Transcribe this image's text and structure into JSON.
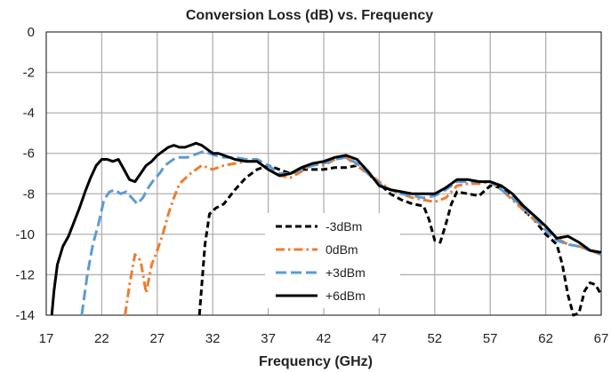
{
  "chart_data": {
    "type": "line",
    "title": "Conversion Loss (dB) vs. Frequency",
    "xlabel": "Frequency (GHz)",
    "ylabel": "",
    "xlim": [
      17,
      67
    ],
    "ylim": [
      -14,
      0
    ],
    "x_ticks": [
      17,
      22,
      27,
      32,
      37,
      42,
      47,
      52,
      57,
      62,
      67
    ],
    "y_ticks": [
      0,
      -2,
      -4,
      -6,
      -8,
      -10,
      -12,
      -14
    ],
    "grid": true,
    "legend_position": "center-bottom",
    "series": [
      {
        "name": "-3dBm",
        "color": "#000000",
        "dash": "dash",
        "x": [
          30.8,
          31.3,
          31.7,
          32.3,
          33.0,
          34.0,
          35.0,
          36.0,
          37.0,
          38.0,
          39.0,
          40.0,
          41.0,
          42.0,
          43.0,
          44.0,
          45.0,
          46.0,
          47.0,
          48.0,
          49.0,
          50.0,
          51.0,
          51.5,
          52.0,
          52.5,
          53.0,
          53.5,
          54.0,
          55.0,
          56.0,
          57.0,
          58.0,
          59.0,
          60.0,
          61.0,
          62.0,
          63.0,
          63.5,
          64.0,
          64.5,
          65.0,
          65.5,
          66.0,
          66.5,
          67.0
        ],
        "y": [
          -14.0,
          -10.5,
          -9.0,
          -8.7,
          -8.5,
          -7.8,
          -7.2,
          -6.8,
          -6.6,
          -6.8,
          -7.0,
          -6.8,
          -6.8,
          -6.8,
          -6.7,
          -6.7,
          -6.6,
          -7.0,
          -7.5,
          -8.0,
          -8.3,
          -8.5,
          -8.6,
          -9.3,
          -10.3,
          -10.4,
          -9.5,
          -8.5,
          -7.9,
          -8.0,
          -8.1,
          -7.6,
          -7.7,
          -8.2,
          -8.8,
          -9.3,
          -10.0,
          -10.5,
          -11.5,
          -13.0,
          -14.0,
          -13.9,
          -12.8,
          -12.4,
          -12.5,
          -13.0
        ]
      },
      {
        "name": "0dBm",
        "color": "#ED7D31",
        "dash": "dashdot",
        "x": [
          24.1,
          24.5,
          25.0,
          25.5,
          26.0,
          26.5,
          27.0,
          27.5,
          28.0,
          28.5,
          29.0,
          30.0,
          31.0,
          32.0,
          33.0,
          34.0,
          35.0,
          36.0,
          37.0,
          38.0,
          39.0,
          40.0,
          41.0,
          42.0,
          43.0,
          44.0,
          45.0,
          46.0,
          47.0,
          48.0,
          49.0,
          50.0,
          51.0,
          52.0,
          53.0,
          54.0,
          55.0,
          56.0,
          57.0,
          58.0,
          59.0,
          60.0,
          61.0,
          62.0,
          63.0,
          64.0,
          65.0,
          66.0,
          67.0
        ],
        "y": [
          -14.0,
          -12.5,
          -11.0,
          -11.3,
          -12.9,
          -11.5,
          -10.8,
          -10.0,
          -9.0,
          -8.2,
          -7.5,
          -7.0,
          -6.6,
          -6.8,
          -6.6,
          -6.5,
          -6.4,
          -6.4,
          -6.8,
          -7.1,
          -7.2,
          -6.9,
          -6.5,
          -6.6,
          -6.3,
          -6.2,
          -6.6,
          -7.0,
          -7.4,
          -7.8,
          -8.0,
          -8.2,
          -8.3,
          -8.4,
          -8.2,
          -7.6,
          -7.5,
          -7.5,
          -7.4,
          -7.8,
          -8.3,
          -8.8,
          -9.3,
          -9.7,
          -10.2,
          -10.5,
          -10.6,
          -10.8,
          -11.0
        ]
      },
      {
        "name": "+3dBm",
        "color": "#5B9BD5",
        "dash": "longdash",
        "x": [
          20.2,
          20.7,
          21.2,
          21.7,
          22.2,
          22.7,
          23.2,
          23.7,
          24.2,
          24.7,
          25.2,
          25.7,
          26.2,
          26.7,
          27.2,
          27.7,
          28.2,
          28.7,
          29.2,
          29.7,
          30.2,
          30.7,
          31.2,
          31.7,
          32.2,
          33.0,
          34.0,
          35.0,
          36.0,
          37.0,
          38.0,
          39.0,
          40.0,
          41.0,
          42.0,
          43.0,
          44.0,
          45.0,
          46.0,
          47.0,
          48.0,
          49.0,
          50.0,
          51.0,
          52.0,
          53.0,
          54.0,
          55.0,
          56.0,
          57.0,
          58.0,
          59.0,
          60.0,
          61.0,
          62.0,
          63.0,
          64.0,
          65.0,
          66.0,
          67.0
        ],
        "y": [
          -14.0,
          -12.0,
          -10.5,
          -9.5,
          -8.3,
          -7.9,
          -7.8,
          -8.0,
          -7.9,
          -8.2,
          -8.5,
          -8.2,
          -7.7,
          -7.3,
          -7.0,
          -6.6,
          -6.4,
          -6.2,
          -6.2,
          -6.2,
          -6.1,
          -6.0,
          -5.9,
          -6.0,
          -6.1,
          -6.2,
          -6.2,
          -6.3,
          -6.3,
          -6.6,
          -7.0,
          -7.0,
          -6.8,
          -6.6,
          -6.5,
          -6.3,
          -6.2,
          -6.5,
          -7.0,
          -7.5,
          -7.8,
          -8.0,
          -8.1,
          -8.2,
          -8.1,
          -7.8,
          -7.4,
          -7.4,
          -7.4,
          -7.4,
          -7.8,
          -8.2,
          -8.7,
          -9.2,
          -9.8,
          -10.3,
          -10.5,
          -10.6,
          -10.8,
          -11.0
        ]
      },
      {
        "name": "+6dBm",
        "color": "#000000",
        "dash": "solid",
        "x": [
          17.5,
          17.7,
          18.0,
          18.5,
          19.0,
          19.5,
          20.0,
          20.5,
          21.0,
          21.5,
          22.0,
          22.5,
          23.0,
          23.5,
          24.0,
          24.5,
          25.0,
          25.5,
          26.0,
          26.5,
          27.0,
          27.5,
          28.0,
          28.5,
          29.0,
          29.5,
          30.0,
          30.5,
          31.0,
          31.5,
          32.0,
          32.5,
          33.0,
          34.0,
          35.0,
          36.0,
          37.0,
          38.0,
          39.0,
          40.0,
          41.0,
          42.0,
          43.0,
          44.0,
          45.0,
          46.0,
          47.0,
          48.0,
          49.0,
          50.0,
          51.0,
          52.0,
          53.0,
          54.0,
          55.0,
          56.0,
          57.0,
          58.0,
          59.0,
          60.0,
          61.0,
          62.0,
          63.0,
          64.0,
          65.0,
          66.0,
          67.0
        ],
        "y": [
          -14.0,
          -12.8,
          -11.5,
          -10.6,
          -10.1,
          -9.4,
          -8.7,
          -7.9,
          -7.2,
          -6.6,
          -6.3,
          -6.3,
          -6.4,
          -6.3,
          -6.8,
          -7.3,
          -7.4,
          -7.0,
          -6.6,
          -6.4,
          -6.1,
          -5.9,
          -5.7,
          -5.6,
          -5.7,
          -5.7,
          -5.6,
          -5.5,
          -5.6,
          -5.8,
          -6.0,
          -6.0,
          -6.1,
          -6.3,
          -6.4,
          -6.4,
          -6.8,
          -7.1,
          -7.0,
          -6.7,
          -6.5,
          -6.4,
          -6.2,
          -6.1,
          -6.3,
          -6.9,
          -7.6,
          -7.8,
          -7.9,
          -8.0,
          -8.0,
          -8.0,
          -7.7,
          -7.3,
          -7.3,
          -7.4,
          -7.4,
          -7.6,
          -8.0,
          -8.6,
          -9.1,
          -9.6,
          -10.2,
          -10.1,
          -10.4,
          -10.8,
          -10.9
        ]
      }
    ]
  }
}
